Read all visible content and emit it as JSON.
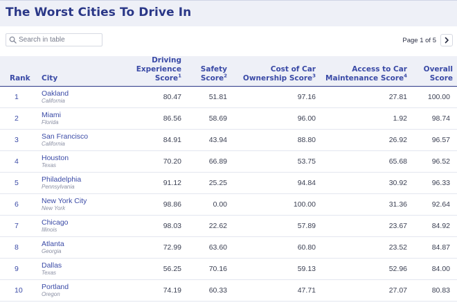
{
  "page": {
    "title": "The Worst Cities To Drive In"
  },
  "search": {
    "placeholder": "Search in table",
    "value": ""
  },
  "pager": {
    "label": "Page 1 of 5"
  },
  "icons": {
    "search": "search-icon",
    "next": "chevron-right-icon"
  },
  "colors": {
    "title": "#2a3787",
    "header_text": "#3a4aa6",
    "header_bg": "#eef0f7",
    "row_text": "#3a3f52",
    "state_text": "#8a8fa3"
  },
  "table": {
    "headers": {
      "rank": "Rank",
      "city": "City",
      "driving_line1": "Driving Experience",
      "driving_line2": "Score",
      "driving_sup": "1",
      "safety_line1": "Safety",
      "safety_line2": "Score",
      "safety_sup": "2",
      "cost_line1": "Cost of Car",
      "cost_line2": "Ownership Score",
      "cost_sup": "3",
      "access_line1": "Access to Car",
      "access_line2": "Maintenance Score",
      "access_sup": "4",
      "overall_line1": "Overall",
      "overall_line2": "Score"
    },
    "rows": [
      {
        "rank": "1",
        "city": "Oakland",
        "state": "California",
        "driving": "80.47",
        "safety": "51.81",
        "cost": "97.16",
        "access": "27.81",
        "overall": "100.00"
      },
      {
        "rank": "2",
        "city": "Miami",
        "state": "Florida",
        "driving": "86.56",
        "safety": "58.69",
        "cost": "96.00",
        "access": "1.92",
        "overall": "98.74"
      },
      {
        "rank": "3",
        "city": "San Francisco",
        "state": "California",
        "driving": "84.91",
        "safety": "43.94",
        "cost": "88.80",
        "access": "26.92",
        "overall": "96.57"
      },
      {
        "rank": "4",
        "city": "Houston",
        "state": "Texas",
        "driving": "70.20",
        "safety": "66.89",
        "cost": "53.75",
        "access": "65.68",
        "overall": "96.52"
      },
      {
        "rank": "5",
        "city": "Philadelphia",
        "state": "Pennsylvania",
        "driving": "91.12",
        "safety": "25.25",
        "cost": "94.84",
        "access": "30.92",
        "overall": "96.33"
      },
      {
        "rank": "6",
        "city": "New York City",
        "state": "New York",
        "driving": "98.86",
        "safety": "0.00",
        "cost": "100.00",
        "access": "31.36",
        "overall": "92.64"
      },
      {
        "rank": "7",
        "city": "Chicago",
        "state": "Illinois",
        "driving": "98.03",
        "safety": "22.62",
        "cost": "57.89",
        "access": "23.67",
        "overall": "84.92"
      },
      {
        "rank": "8",
        "city": "Atlanta",
        "state": "Georgia",
        "driving": "72.99",
        "safety": "63.60",
        "cost": "60.80",
        "access": "23.52",
        "overall": "84.87"
      },
      {
        "rank": "9",
        "city": "Dallas",
        "state": "Texas",
        "driving": "56.25",
        "safety": "70.16",
        "cost": "59.13",
        "access": "52.96",
        "overall": "84.00"
      },
      {
        "rank": "10",
        "city": "Portland",
        "state": "Oregon",
        "driving": "74.19",
        "safety": "60.33",
        "cost": "47.71",
        "access": "27.07",
        "overall": "80.83"
      }
    ]
  }
}
